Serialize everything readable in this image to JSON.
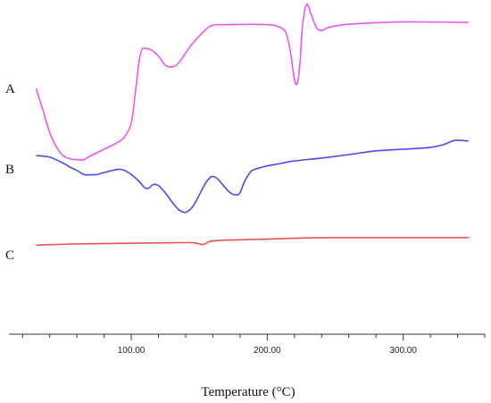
{
  "chart_data": {
    "type": "line",
    "xlabel": "Temperature (°C)",
    "ylabel": "",
    "xlim": [
      10,
      360
    ],
    "ylim": [
      0,
      100
    ],
    "x_ticks": [
      {
        "value": 100,
        "label": "100.00"
      },
      {
        "value": 200,
        "label": "200.00"
      },
      {
        "value": 300,
        "label": "300.00"
      }
    ],
    "grid": false,
    "legend": "none",
    "series": [
      {
        "name": "A",
        "color": "#ee55ee",
        "points": [
          [
            30,
            73.4
          ],
          [
            35,
            66.5
          ],
          [
            40,
            59.4
          ],
          [
            45,
            54.8
          ],
          [
            50,
            52.0
          ],
          [
            55,
            51.1
          ],
          [
            60,
            50.8
          ],
          [
            65,
            50.8
          ],
          [
            70,
            52.0
          ],
          [
            80,
            54.1
          ],
          [
            90,
            56.3
          ],
          [
            95,
            58.0
          ],
          [
            100,
            62.5
          ],
          [
            103,
            72.0
          ],
          [
            106,
            82.7
          ],
          [
            108,
            85.8
          ],
          [
            110,
            86.1
          ],
          [
            115,
            85.5
          ],
          [
            120,
            83.6
          ],
          [
            125,
            80.8
          ],
          [
            130,
            80.2
          ],
          [
            135,
            81.6
          ],
          [
            145,
            87.6
          ],
          [
            155,
            92.1
          ],
          [
            160,
            93.4
          ],
          [
            170,
            93.6
          ],
          [
            200,
            93.6
          ],
          [
            210,
            92.6
          ],
          [
            214,
            90.7
          ],
          [
            217,
            85.2
          ],
          [
            220,
            76.2
          ],
          [
            222,
            75.0
          ],
          [
            224,
            81.0
          ],
          [
            226,
            93.4
          ],
          [
            229,
            100.0
          ],
          [
            232,
            97.1
          ],
          [
            236,
            92.8
          ],
          [
            238,
            92.0
          ],
          [
            240,
            91.7
          ],
          [
            245,
            92.7
          ],
          [
            255,
            93.5
          ],
          [
            270,
            94.0
          ],
          [
            300,
            94.5
          ],
          [
            348,
            94.3
          ]
        ]
      },
      {
        "name": "B",
        "color": "#4a4aee",
        "points": [
          [
            30,
            52.1
          ],
          [
            40,
            51.6
          ],
          [
            50,
            49.7
          ],
          [
            55,
            48.4
          ],
          [
            60,
            47.4
          ],
          [
            65,
            46.1
          ],
          [
            70,
            46.0
          ],
          [
            75,
            46.1
          ],
          [
            80,
            46.7
          ],
          [
            90,
            47.7
          ],
          [
            95,
            47.4
          ],
          [
            100,
            46.1
          ],
          [
            105,
            44.2
          ],
          [
            110,
            41.9
          ],
          [
            113,
            41.8
          ],
          [
            116,
            42.9
          ],
          [
            120,
            42.6
          ],
          [
            125,
            40.3
          ],
          [
            130,
            37.4
          ],
          [
            135,
            34.9
          ],
          [
            140,
            34.1
          ],
          [
            145,
            35.8
          ],
          [
            150,
            39.6
          ],
          [
            155,
            43.6
          ],
          [
            159,
            45.4
          ],
          [
            163,
            44.9
          ],
          [
            167,
            43.0
          ],
          [
            172,
            40.6
          ],
          [
            177,
            39.6
          ],
          [
            180,
            40.3
          ],
          [
            183,
            43.6
          ],
          [
            187,
            46.5
          ],
          [
            190,
            47.6
          ],
          [
            200,
            48.8
          ],
          [
            210,
            49.6
          ],
          [
            220,
            50.4
          ],
          [
            240,
            51.3
          ],
          [
            260,
            52.4
          ],
          [
            280,
            53.6
          ],
          [
            300,
            54.1
          ],
          [
            320,
            54.7
          ],
          [
            330,
            55.6
          ],
          [
            338,
            56.9
          ],
          [
            348,
            56.7
          ]
        ]
      },
      {
        "name": "C",
        "color": "#ee5050",
        "points": [
          [
            30,
            23.7
          ],
          [
            60,
            24.1
          ],
          [
            100,
            24.3
          ],
          [
            140,
            24.5
          ],
          [
            148,
            24.3
          ],
          [
            152,
            23.9
          ],
          [
            155,
            24.2
          ],
          [
            158,
            24.9
          ],
          [
            170,
            25.3
          ],
          [
            200,
            25.6
          ],
          [
            230,
            26.0
          ],
          [
            260,
            26.1
          ],
          [
            300,
            26.1
          ],
          [
            348,
            26.1
          ]
        ]
      }
    ]
  }
}
